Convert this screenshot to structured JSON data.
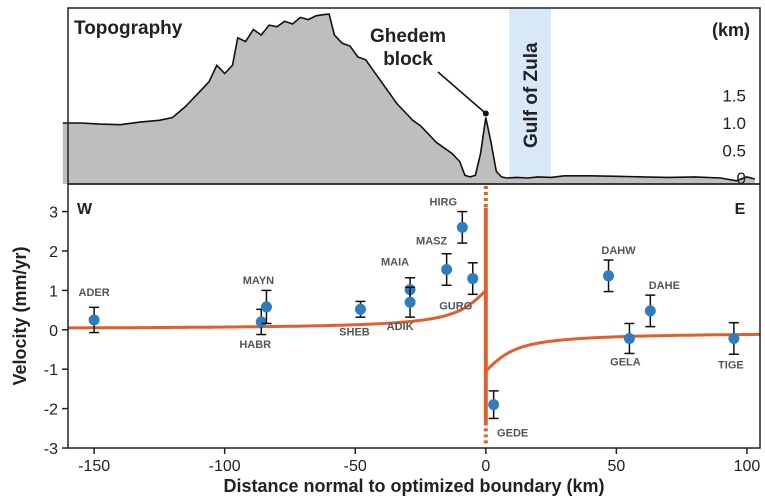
{
  "chart_data": [
    {
      "type": "area",
      "panel": "top",
      "title": "Topography",
      "ylabel": "(km)",
      "yticks": [
        "1.5",
        "1.0",
        "0.5",
        "0"
      ],
      "ylim": [
        0,
        3.0
      ],
      "fill_color": "#bebebe",
      "line_color": "#111111",
      "annotations": [
        {
          "text_line1": "Ghedem",
          "text_line2": "block",
          "x": 0,
          "y": 1.1
        }
      ],
      "shaded_band": {
        "label": "Gulf of Zula",
        "x_range": [
          9,
          25
        ],
        "color": "#d8e8f7"
      },
      "profile": [
        [
          -162,
          1.0
        ],
        [
          -155,
          1.0
        ],
        [
          -148,
          0.98
        ],
        [
          -140,
          0.97
        ],
        [
          -132,
          1.02
        ],
        [
          -125,
          1.05
        ],
        [
          -120,
          1.1
        ],
        [
          -115,
          1.3
        ],
        [
          -110,
          1.55
        ],
        [
          -106,
          1.75
        ],
        [
          -103,
          2.05
        ],
        [
          -100,
          1.9
        ],
        [
          -97,
          2.05
        ],
        [
          -95,
          2.55
        ],
        [
          -92,
          2.48
        ],
        [
          -89,
          2.7
        ],
        [
          -86,
          2.6
        ],
        [
          -83,
          2.78
        ],
        [
          -80,
          2.75
        ],
        [
          -77,
          2.85
        ],
        [
          -74,
          2.8
        ],
        [
          -71,
          2.92
        ],
        [
          -68,
          2.88
        ],
        [
          -65,
          2.95
        ],
        [
          -62,
          2.97
        ],
        [
          -60,
          2.98
        ],
        [
          -58,
          2.6
        ],
        [
          -55,
          2.45
        ],
        [
          -52,
          2.4
        ],
        [
          -49,
          2.2
        ],
        [
          -46,
          2.15
        ],
        [
          -43,
          1.95
        ],
        [
          -40,
          1.75
        ],
        [
          -37,
          1.55
        ],
        [
          -34,
          1.35
        ],
        [
          -31,
          1.2
        ],
        [
          -28,
          1.05
        ],
        [
          -25,
          0.95
        ],
        [
          -22,
          0.8
        ],
        [
          -19,
          0.65
        ],
        [
          -16,
          0.55
        ],
        [
          -13,
          0.45
        ],
        [
          -10,
          0.3
        ],
        [
          -8,
          0.05
        ],
        [
          -6,
          0.02
        ],
        [
          -4,
          0.05
        ],
        [
          -2,
          0.45
        ],
        [
          0,
          1.1
        ],
        [
          2,
          0.65
        ],
        [
          4,
          0.12
        ],
        [
          6,
          0.02
        ],
        [
          8,
          0.0
        ],
        [
          12,
          0.01
        ],
        [
          16,
          0.0
        ],
        [
          20,
          0.02
        ],
        [
          25,
          0.01
        ],
        [
          30,
          0.04
        ],
        [
          40,
          0.04
        ],
        [
          50,
          0.03
        ],
        [
          60,
          0.02
        ],
        [
          70,
          0.01
        ],
        [
          80,
          0.02
        ],
        [
          90,
          0.0
        ],
        [
          96,
          -0.05
        ],
        [
          100,
          0.02
        ],
        [
          103,
          -0.02
        ]
      ]
    },
    {
      "type": "scatter",
      "panel": "bottom",
      "xlabel": "Distance normal to optimized boundary (km)",
      "ylabel": "Velocity (mm/yr)",
      "xlim": [
        -160,
        105
      ],
      "ylim": [
        -3,
        3.7
      ],
      "xticks": [
        -150,
        -100,
        -50,
        0,
        50,
        100
      ],
      "yticks": [
        -3,
        -2,
        -1,
        0,
        1,
        2,
        3
      ],
      "xtick_labels": [
        "-150",
        "-100",
        "-50",
        "0",
        "50",
        "100"
      ],
      "ytick_labels": [
        "-3",
        "-2",
        "-1",
        "0",
        "1",
        "2",
        "3"
      ],
      "side_labels": {
        "west": "W",
        "east": "E"
      },
      "point_color": "#2e7cc1",
      "model_color": "#e0602d",
      "points": [
        {
          "name": "ADER",
          "x": -150,
          "y": 0.25,
          "err": 0.32
        },
        {
          "name": "HABR",
          "x": -86,
          "y": 0.2,
          "err": 0.32
        },
        {
          "name": "MAYN",
          "x": -84,
          "y": 0.58,
          "err": 0.42
        },
        {
          "name": "SHEB",
          "x": -48,
          "y": 0.52,
          "err": 0.2
        },
        {
          "name": "MAIA",
          "x": -29,
          "y": 1.02,
          "err": 0.3
        },
        {
          "name": "ADIK",
          "x": -29,
          "y": 0.7,
          "err": 0.38
        },
        {
          "name": "MASZ",
          "x": -15,
          "y": 1.53,
          "err": 0.4
        },
        {
          "name": "HIRG",
          "x": -9,
          "y": 2.6,
          "err": 0.4
        },
        {
          "name": "GURG",
          "x": -5,
          "y": 1.3,
          "err": 0.4
        },
        {
          "name": "GEDE",
          "x": 3,
          "y": -1.9,
          "err": 0.35
        },
        {
          "name": "DAHW",
          "x": 47,
          "y": 1.37,
          "err": 0.4
        },
        {
          "name": "GELA",
          "x": 55,
          "y": -0.22,
          "err": 0.38
        },
        {
          "name": "DAHE",
          "x": 63,
          "y": 0.48,
          "err": 0.4
        },
        {
          "name": "TIGE",
          "x": 95,
          "y": -0.22,
          "err": 0.4
        }
      ]
    }
  ]
}
